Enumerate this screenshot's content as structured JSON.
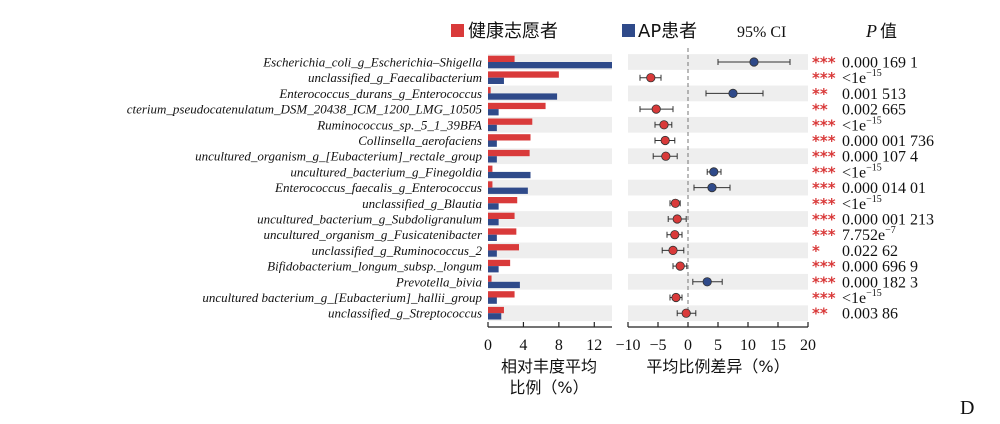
{
  "legend": {
    "healthy": "健康志愿者",
    "ap": "AP患者",
    "ci": "95% CI",
    "p_header_italic": "P",
    "p_header_rest": "值"
  },
  "colors": {
    "healthy": "#d93a3a",
    "ap": "#2f4a8a",
    "stripe": "#eeeeee",
    "star": "#d93a3a"
  },
  "panel_letter": "D",
  "left_xlabel_line1": "相对丰度平均",
  "left_xlabel_line2": "比例（%）",
  "right_xlabel": "平均比例差异（%）",
  "chart_data": [
    {
      "type": "bar",
      "orientation": "horizontal",
      "xlim": [
        0,
        14
      ],
      "xticks": [
        "0",
        "4",
        "8",
        "12"
      ],
      "xtick_values": [
        0,
        4,
        8,
        12
      ],
      "categories": [
        "Escherichia_coli_g_Escherichia–Shigella",
        "unclassified_g_Faecalibacterium",
        "Enterococcus_durans_g_Enterococcus",
        "cterium_pseudocatenulatum_DSM_20438_ICM_1200_LMG_10505",
        "Ruminococcus_sp._5_1_39BFA",
        "Collinsella_aerofaciens",
        "uncultured_organism_g_[Eubacterium]_rectale_group",
        "uncultured_bacterium_g_Finegoldia",
        "Enterococcus_faecalis_g_Enterococcus",
        "unclassified_g_Blautia",
        "uncultured_bacterium_g_Subdoligranulum",
        "uncultured_organism_g_Fusicatenibacter",
        "unclassified_g_Ruminococcus_2",
        "Bifidobacterium_longum_subsp._longum",
        "Prevotella_bivia",
        "uncultured bacterium_g_[Eubacterium]_hallii_group",
        "unclassified_g_Streptococcus"
      ],
      "series": [
        {
          "name": "健康志愿者",
          "values": [
            3.0,
            8.0,
            0.3,
            6.5,
            5.0,
            4.8,
            4.7,
            0.5,
            0.5,
            3.3,
            3.0,
            3.2,
            3.5,
            2.5,
            0.4,
            3.0,
            1.8
          ]
        },
        {
          "name": "AP患者",
          "values": [
            14.0,
            1.8,
            7.8,
            1.2,
            1.0,
            1.0,
            1.0,
            4.8,
            4.5,
            1.2,
            1.2,
            1.0,
            1.0,
            1.2,
            3.6,
            1.0,
            1.5
          ]
        }
      ]
    },
    {
      "type": "scatter",
      "xlim": [
        -10,
        20
      ],
      "xticks": [
        "−10",
        "−5",
        "0",
        "5",
        "10",
        "15",
        "20"
      ],
      "xtick_values": [
        -10,
        -5,
        0,
        5,
        10,
        15,
        20
      ],
      "points": [
        {
          "diff": 11.0,
          "lo": 5.0,
          "hi": 17.0,
          "group": "ap"
        },
        {
          "diff": -6.2,
          "lo": -8.0,
          "hi": -4.5,
          "group": "healthy"
        },
        {
          "diff": 7.5,
          "lo": 3.0,
          "hi": 12.5,
          "group": "ap"
        },
        {
          "diff": -5.3,
          "lo": -8.0,
          "hi": -2.5,
          "group": "healthy"
        },
        {
          "diff": -4.0,
          "lo": -5.5,
          "hi": -2.7,
          "group": "healthy"
        },
        {
          "diff": -3.8,
          "lo": -5.5,
          "hi": -2.2,
          "group": "healthy"
        },
        {
          "diff": -3.7,
          "lo": -5.8,
          "hi": -1.8,
          "group": "healthy"
        },
        {
          "diff": 4.3,
          "lo": 3.2,
          "hi": 5.5,
          "group": "ap"
        },
        {
          "diff": 4.0,
          "lo": 1.0,
          "hi": 7.0,
          "group": "ap"
        },
        {
          "diff": -2.1,
          "lo": -3.0,
          "hi": -1.3,
          "group": "healthy"
        },
        {
          "diff": -1.8,
          "lo": -3.3,
          "hi": -0.3,
          "group": "healthy"
        },
        {
          "diff": -2.2,
          "lo": -3.5,
          "hi": -1.0,
          "group": "healthy"
        },
        {
          "diff": -2.5,
          "lo": -4.3,
          "hi": -0.7,
          "group": "healthy"
        },
        {
          "diff": -1.3,
          "lo": -2.5,
          "hi": -0.2,
          "group": "healthy"
        },
        {
          "diff": 3.2,
          "lo": 0.8,
          "hi": 5.7,
          "group": "ap"
        },
        {
          "diff": -2.0,
          "lo": -3.0,
          "hi": -1.0,
          "group": "healthy"
        },
        {
          "diff": -0.3,
          "lo": -1.8,
          "hi": 1.3,
          "group": "healthy"
        }
      ],
      "stars": [
        "***",
        "***",
        "**",
        "**",
        "***",
        "***",
        "***",
        "***",
        "***",
        "***",
        "***",
        "***",
        "*",
        "***",
        "***",
        "***",
        "**"
      ],
      "pvalues": [
        {
          "base": "0.000 169 1",
          "sup": ""
        },
        {
          "base": "<1e",
          "sup": "−15"
        },
        {
          "base": "0.001 513",
          "sup": ""
        },
        {
          "base": "0.002 665",
          "sup": ""
        },
        {
          "base": "<1e",
          "sup": "−15"
        },
        {
          "base": "0.000 001 736",
          "sup": ""
        },
        {
          "base": "0.000 107 4",
          "sup": ""
        },
        {
          "base": "<1e",
          "sup": "−15"
        },
        {
          "base": "0.000 014 01",
          "sup": ""
        },
        {
          "base": "<1e",
          "sup": "−15"
        },
        {
          "base": "0.000 001 213",
          "sup": ""
        },
        {
          "base": "7.752e",
          "sup": "−7"
        },
        {
          "base": "0.022 62",
          "sup": ""
        },
        {
          "base": "0.000 696 9",
          "sup": ""
        },
        {
          "base": "0.000 182 3",
          "sup": ""
        },
        {
          "base": "<1e",
          "sup": "−15"
        },
        {
          "base": "0.003 86",
          "sup": ""
        }
      ]
    }
  ]
}
